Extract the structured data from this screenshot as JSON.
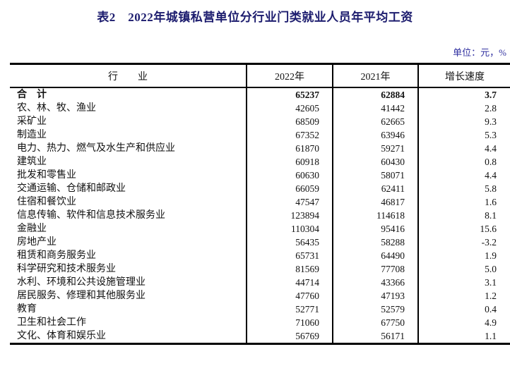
{
  "page": {
    "title": "表2　2022年城镇私营单位分行业门类就业人员年平均工资",
    "unit_label": "单位：元，%"
  },
  "table": {
    "headers": [
      "行　　业",
      "2022年",
      "2021年",
      "增长速度"
    ],
    "rows": [
      {
        "industry": "合　计",
        "y2022": "65237",
        "y2021": "62884",
        "growth": "3.7",
        "bold": true
      },
      {
        "industry": "农、林、牧、渔业",
        "y2022": "42605",
        "y2021": "41442",
        "growth": "2.8"
      },
      {
        "industry": "采矿业",
        "y2022": "68509",
        "y2021": "62665",
        "growth": "9.3"
      },
      {
        "industry": "制造业",
        "y2022": "67352",
        "y2021": "63946",
        "growth": "5.3"
      },
      {
        "industry": "电力、热力、燃气及水生产和供应业",
        "y2022": "61870",
        "y2021": "59271",
        "growth": "4.4"
      },
      {
        "industry": "建筑业",
        "y2022": "60918",
        "y2021": "60430",
        "growth": "0.8"
      },
      {
        "industry": "批发和零售业",
        "y2022": "60630",
        "y2021": "58071",
        "growth": "4.4"
      },
      {
        "industry": "交通运输、仓储和邮政业",
        "y2022": "66059",
        "y2021": "62411",
        "growth": "5.8"
      },
      {
        "industry": "住宿和餐饮业",
        "y2022": "47547",
        "y2021": "46817",
        "growth": "1.6"
      },
      {
        "industry": "信息传输、软件和信息技术服务业",
        "y2022": "123894",
        "y2021": "114618",
        "growth": "8.1"
      },
      {
        "industry": "金融业",
        "y2022": "110304",
        "y2021": "95416",
        "growth": "15.6"
      },
      {
        "industry": "房地产业",
        "y2022": "56435",
        "y2021": "58288",
        "growth": "-3.2"
      },
      {
        "industry": "租赁和商务服务业",
        "y2022": "65731",
        "y2021": "64490",
        "growth": "1.9"
      },
      {
        "industry": "科学研究和技术服务业",
        "y2022": "81569",
        "y2021": "77708",
        "growth": "5.0"
      },
      {
        "industry": "水利、环境和公共设施管理业",
        "y2022": "44714",
        "y2021": "43366",
        "growth": "3.1"
      },
      {
        "industry": "居民服务、修理和其他服务业",
        "y2022": "47760",
        "y2021": "47193",
        "growth": "1.2"
      },
      {
        "industry": "教育",
        "y2022": "52771",
        "y2021": "52579",
        "growth": "0.4"
      },
      {
        "industry": "卫生和社会工作",
        "y2022": "71060",
        "y2021": "67750",
        "growth": "4.9"
      },
      {
        "industry": "文化、体育和娱乐业",
        "y2022": "56769",
        "y2021": "56171",
        "growth": "1.1"
      }
    ]
  },
  "colors": {
    "title_text": "#1c1c6e",
    "unit_text": "#3030a0",
    "border": "#000000",
    "body_text": "#111111",
    "background": "#ffffff"
  }
}
